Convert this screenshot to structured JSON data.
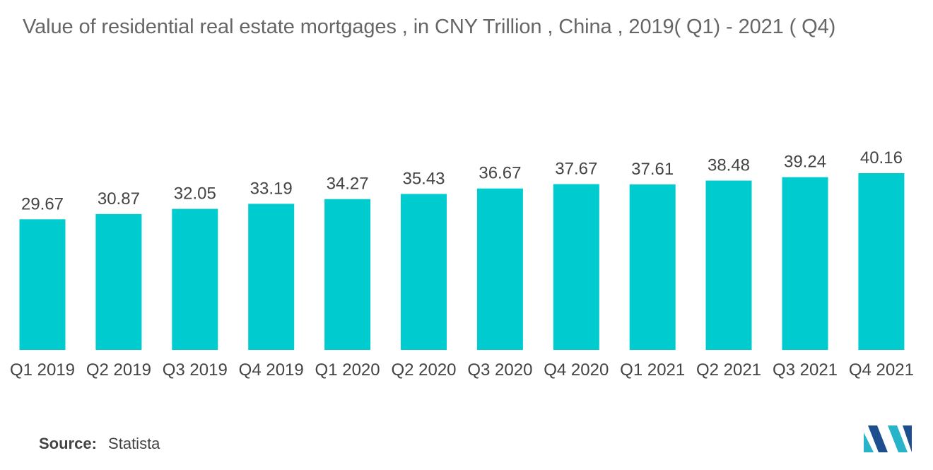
{
  "title": "Value of residential real estate mortgages , in CNY Trillion , China , 2019( Q1) - 2021 ( Q4)",
  "source": {
    "key": "Source:",
    "value": "Statista"
  },
  "colors": {
    "bar": "#00CCD0",
    "text": "#444444",
    "title": "#666666",
    "logo_dark": "#1d4f8f",
    "logo_light": "#27b4c8"
  },
  "logo": {
    "icon": "mordor-intelligence-logo"
  },
  "chart_data": {
    "type": "bar",
    "title": "Value of residential real estate mortgages , in CNY Trillion , China , 2019( Q1) - 2021 ( Q4)",
    "categories": [
      "Q1 2019",
      "Q2 2019",
      "Q3 2019",
      "Q4 2019",
      "Q1 2020",
      "Q2 2020",
      "Q3 2020",
      "Q4 2020",
      "Q1 2021",
      "Q2 2021",
      "Q3 2021",
      "Q4 2021"
    ],
    "values": [
      29.67,
      30.87,
      32.05,
      33.19,
      34.27,
      35.43,
      36.67,
      37.67,
      37.61,
      38.48,
      39.24,
      40.16
    ],
    "value_labels": [
      "29.67",
      "30.87",
      "32.05",
      "33.19",
      "34.27",
      "35.43",
      "36.67",
      "37.67",
      "37.61",
      "38.48",
      "39.24",
      "40.16"
    ],
    "xlabel": "",
    "ylabel": "",
    "ylim": [
      0,
      40.16
    ],
    "grid": false,
    "legend": "none",
    "data_labels": "above bars"
  }
}
